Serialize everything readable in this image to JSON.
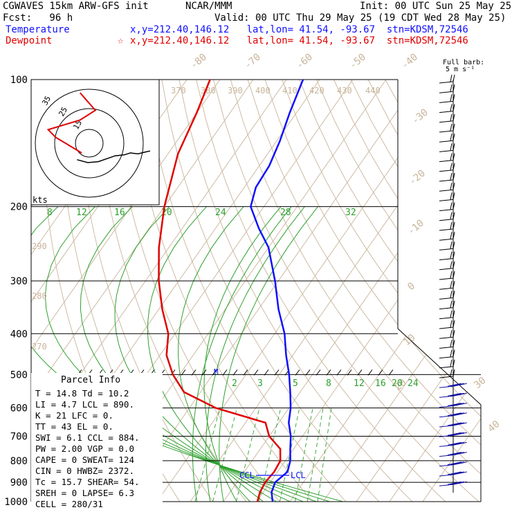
{
  "header": {
    "model": "CGWAVES 15km ARW-GFS init",
    "org": "NCAR/MMM",
    "init": "Init: 00 UTC Sun 25 May 25",
    "fcst": "Fcst:   96 h",
    "valid": "Valid: 00 UTC Thu 29 May 25 (19 CDT Wed 28 May 25)",
    "temp_label": "Temperature",
    "temp_loc": "x,y=212.40,146.12   lat,lon= 41.54, -93.67  stn=KDSM,72546",
    "dew_label": "Dewpoint",
    "dew_loc": "x,y=212.40,146.12   lat,lon= 41.54, -93.67  stn=KDSM,72546",
    "dew_marker": "☆"
  },
  "barb_legend": {
    "line1": "Full barb:",
    "line2": "5 m s⁻¹"
  },
  "hodograph": {
    "rings": [
      "15",
      "25",
      "35"
    ],
    "units": "kts"
  },
  "mark_labels": {
    "M": "M",
    "CCL": "CCL",
    "LCL": "LCL"
  },
  "parcel": {
    "title": "Parcel Info",
    "rows": [
      "T  =   14.8 Td =  10.2",
      "LI =    4.7 LCL =  890.",
      "K  =     21 LFC =    0.",
      "TT =     43 EL  =    0.",
      "SWI =   6.1 CCL =  884.",
      "PW =   2.00 VGP =   0.0",
      "CAPE =    0 SWEAT=  124",
      "CIN =     0 HWBZ= 2372.",
      "Tc =   15.7 SHEAR=  54.",
      "SREH =    0 LAPSE=  6.3",
      "CELL = 280/31"
    ]
  },
  "chart_data": {
    "type": "line",
    "title": "Skew-T log-p sounding",
    "ylabel": "",
    "pressure_ticks": [
      100,
      200,
      300,
      400,
      500,
      600,
      700,
      800,
      900,
      1000
    ],
    "isotherm_labels_top": [
      "-80",
      "-70",
      "-60",
      "-50",
      "-40"
    ],
    "isotherm_labels_right": [
      "-30",
      "-20",
      "-10",
      "0",
      "10",
      "20",
      "30",
      "40"
    ],
    "theta_labels": [
      "370",
      "380",
      "390",
      "400",
      "410",
      "420",
      "430",
      "440"
    ],
    "theta_labels_left": [
      "290",
      "280",
      "270"
    ],
    "mixing_ratio_labels_upper": [
      "8",
      "12",
      "16",
      "20",
      "24",
      "28",
      "32"
    ],
    "mixing_ratio_labels_lower": [
      "2",
      "3",
      "5",
      "8",
      "12",
      "16",
      "20",
      "24"
    ],
    "series": [
      {
        "name": "Temperature",
        "color": "#1010ff",
        "points": [
          [
            1000,
            14.8
          ],
          [
            950,
            12.5
          ],
          [
            900,
            11.5
          ],
          [
            850,
            13.0
          ],
          [
            800,
            11.5
          ],
          [
            750,
            9.0
          ],
          [
            700,
            6.5
          ],
          [
            650,
            3.0
          ],
          [
            600,
            0.5
          ],
          [
            550,
            -3.0
          ],
          [
            500,
            -7.0
          ],
          [
            450,
            -12.0
          ],
          [
            400,
            -17.0
          ],
          [
            350,
            -24.0
          ],
          [
            300,
            -31.0
          ],
          [
            250,
            -40.0
          ],
          [
            225,
            -47.0
          ],
          [
            200,
            -54.0
          ],
          [
            180,
            -56.5
          ],
          [
            160,
            -57.0
          ],
          [
            140,
            -59.0
          ],
          [
            120,
            -62.0
          ],
          [
            100,
            -65.0
          ]
        ]
      },
      {
        "name": "Dewpoint",
        "color": "#e00000",
        "points": [
          [
            1000,
            10.2
          ],
          [
            950,
            9.0
          ],
          [
            900,
            8.5
          ],
          [
            850,
            9.0
          ],
          [
            800,
            8.5
          ],
          [
            750,
            6.0
          ],
          [
            700,
            0.0
          ],
          [
            650,
            -4.0
          ],
          [
            600,
            -22.0
          ],
          [
            550,
            -35.0
          ],
          [
            500,
            -42.0
          ],
          [
            450,
            -48.0
          ],
          [
            400,
            -52.0
          ],
          [
            350,
            -59.0
          ],
          [
            300,
            -66.0
          ],
          [
            250,
            -73.0
          ],
          [
            200,
            -80.0
          ],
          [
            150,
            -87.0
          ],
          [
            120,
            -90.0
          ],
          [
            100,
            -93.0
          ]
        ]
      }
    ],
    "hodograph_red": [
      [
        -5,
        10
      ],
      [
        -22,
        -6
      ],
      [
        -27,
        -14
      ],
      [
        -6,
        -24
      ],
      [
        4,
        -34
      ],
      [
        -6,
        -52
      ]
    ],
    "hodograph_black": [
      [
        -8,
        17
      ],
      [
        -1,
        20
      ],
      [
        6,
        19
      ],
      [
        17,
        13
      ],
      [
        23,
        12
      ],
      [
        27,
        10
      ],
      [
        32,
        11
      ],
      [
        37,
        9
      ],
      [
        40,
        8
      ]
    ],
    "annotations": [
      "M",
      "CCL",
      "LCL"
    ]
  }
}
